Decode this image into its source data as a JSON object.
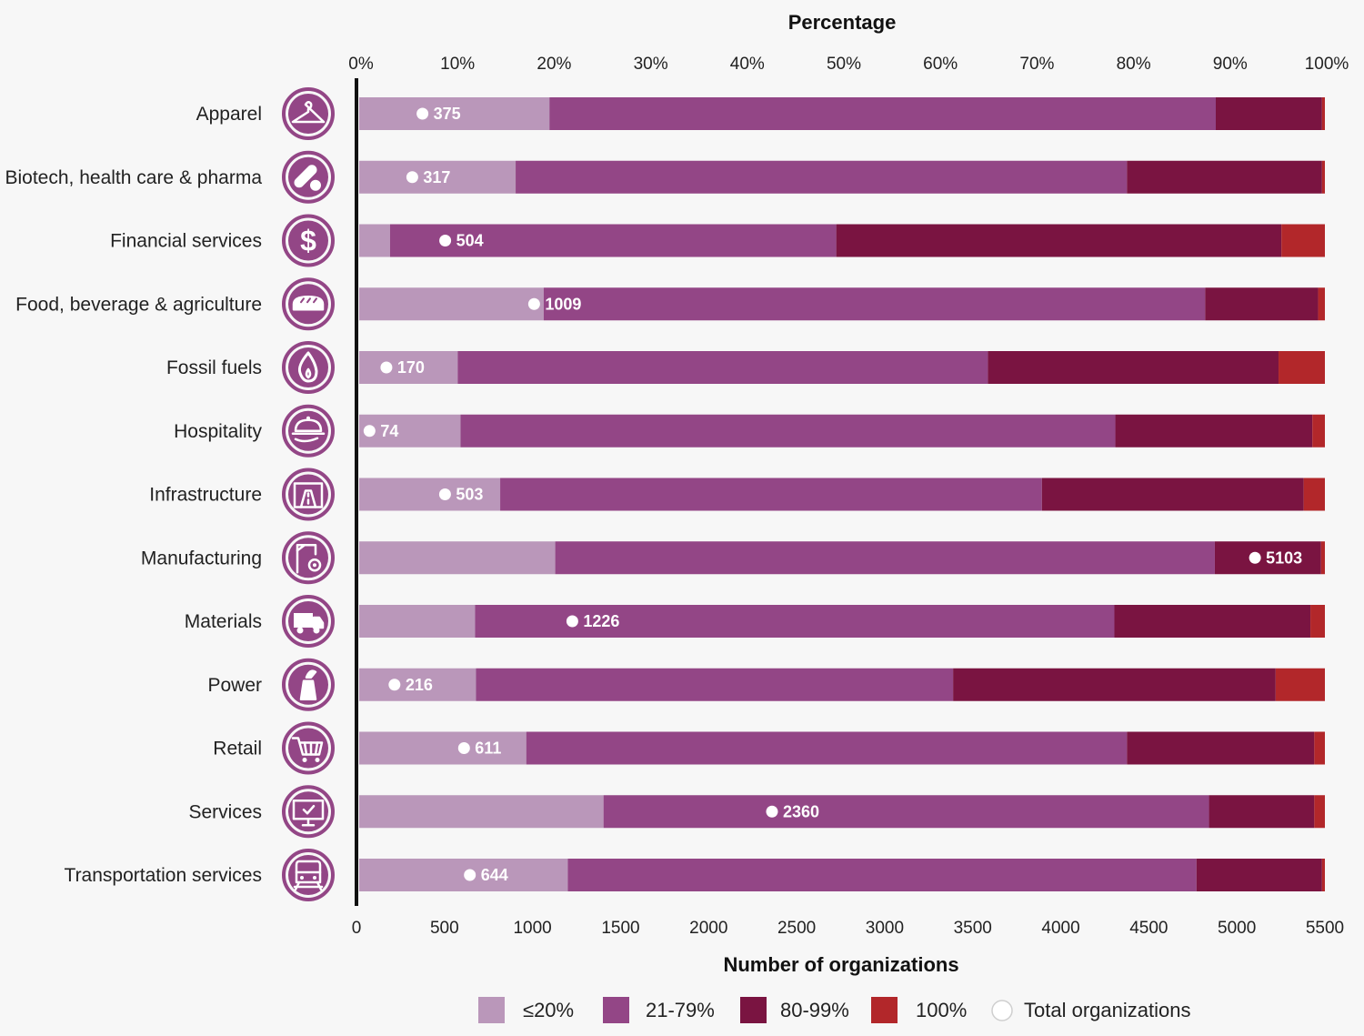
{
  "chart_data": {
    "type": "bar",
    "orientation": "horizontal",
    "stacked": "percent",
    "top_axis_title": "Percentage",
    "top_ticks": [
      "0%",
      "10%",
      "20%",
      "30%",
      "40%",
      "50%",
      "60%",
      "70%",
      "80%",
      "90%",
      "100%"
    ],
    "xlabel": "Number of organizations",
    "bottom_ticks": [
      "0",
      "500",
      "1000",
      "1500",
      "2000",
      "2500",
      "3000",
      "3500",
      "4000",
      "4500",
      "5000",
      "5500"
    ],
    "xlim_percent": [
      0,
      100
    ],
    "xlim_count": [
      0,
      5500
    ],
    "categories": [
      "Apparel",
      "Biotech, health care & pharma",
      "Financial services",
      "Food, beverage & agriculture",
      "Fossil fuels",
      "Hospitality",
      "Infrastructure",
      "Manufacturing",
      "Materials",
      "Power",
      "Retail",
      "Services",
      "Transportation services"
    ],
    "icons": [
      "hanger-icon",
      "pill-icon",
      "dollar-icon",
      "bread-icon",
      "flame-icon",
      "serving-cloche-icon",
      "road-icon",
      "crane-gear-icon",
      "truck-icon",
      "power-plant-icon",
      "shopping-cart-icon",
      "monitor-check-icon",
      "train-icon"
    ],
    "series": [
      {
        "name": "≤20%",
        "color": "#ba97ba",
        "values": [
          19.7,
          16.2,
          3.2,
          19.1,
          10.2,
          10.5,
          14.6,
          20.3,
          12.0,
          12.1,
          17.3,
          25.3,
          21.6
        ]
      },
      {
        "name": "21-79%",
        "color": "#934686",
        "values": [
          69.0,
          63.3,
          46.2,
          68.5,
          54.9,
          67.8,
          56.1,
          68.3,
          66.2,
          49.4,
          62.2,
          62.7,
          65.1
        ]
      },
      {
        "name": "80-99%",
        "color": "#7a1441",
        "values": [
          11.0,
          20.2,
          46.1,
          11.7,
          30.1,
          20.4,
          27.1,
          11.0,
          20.3,
          33.4,
          19.4,
          10.9,
          13.0
        ]
      },
      {
        "name": "100%",
        "color": "#b2272a",
        "values": [
          0.3,
          0.3,
          4.5,
          0.7,
          4.8,
          1.3,
          2.2,
          0.4,
          1.5,
          5.1,
          1.1,
          1.1,
          0.3
        ]
      }
    ],
    "totals_series_name": "Total organizations",
    "totals": [
      375,
      317,
      504,
      1009,
      170,
      74,
      503,
      5103,
      1226,
      216,
      611,
      2360,
      644
    ],
    "grid": false,
    "legend_position": "bottom"
  }
}
